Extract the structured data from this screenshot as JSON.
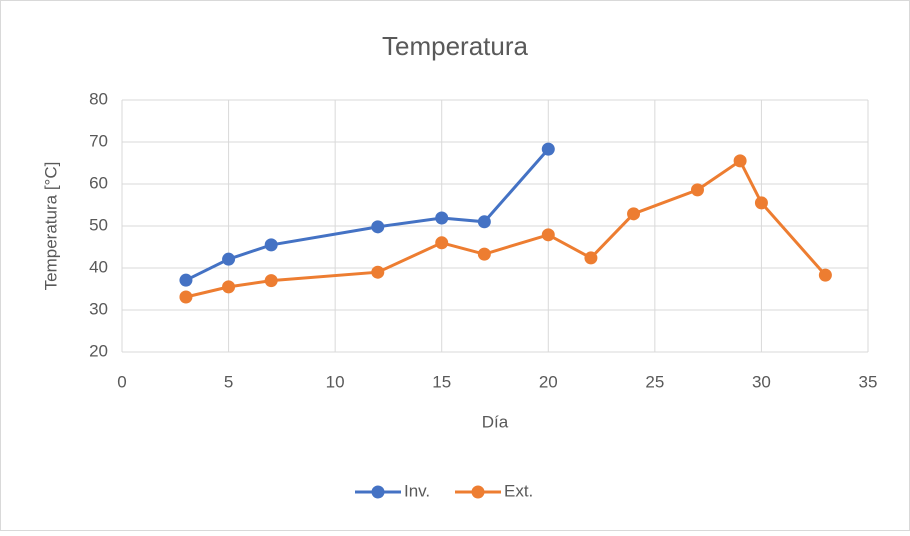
{
  "chart_data": {
    "type": "scatter",
    "title": "Temperatura",
    "x_label": "Día",
    "y_label": "Temperatura [°C]",
    "series": [
      {
        "name": "Inv.",
        "color": "#4472c4",
        "x": [
          3,
          5,
          7,
          12,
          15,
          17,
          20
        ],
        "values": [
          37.1,
          42.1,
          45.5,
          49.8,
          51.9,
          51,
          68.3
        ]
      },
      {
        "name": "Ext.",
        "color": "#ed7d31",
        "x": [
          3,
          5,
          7,
          12,
          15,
          17,
          20,
          22,
          24,
          27,
          29,
          30,
          33
        ],
        "values": [
          33.1,
          35.5,
          37,
          39,
          46,
          43.3,
          47.9,
          42.4,
          52.9,
          58.6,
          65.5,
          55.5,
          38.3
        ]
      }
    ],
    "xlim": [
      0,
      35
    ],
    "xticks": [
      0,
      5,
      10,
      15,
      20,
      25,
      30,
      35
    ],
    "ylim": [
      20,
      80
    ],
    "yticks": [
      20,
      30,
      40,
      50,
      60,
      70,
      80
    ],
    "grid": true,
    "legend": "bottom"
  }
}
